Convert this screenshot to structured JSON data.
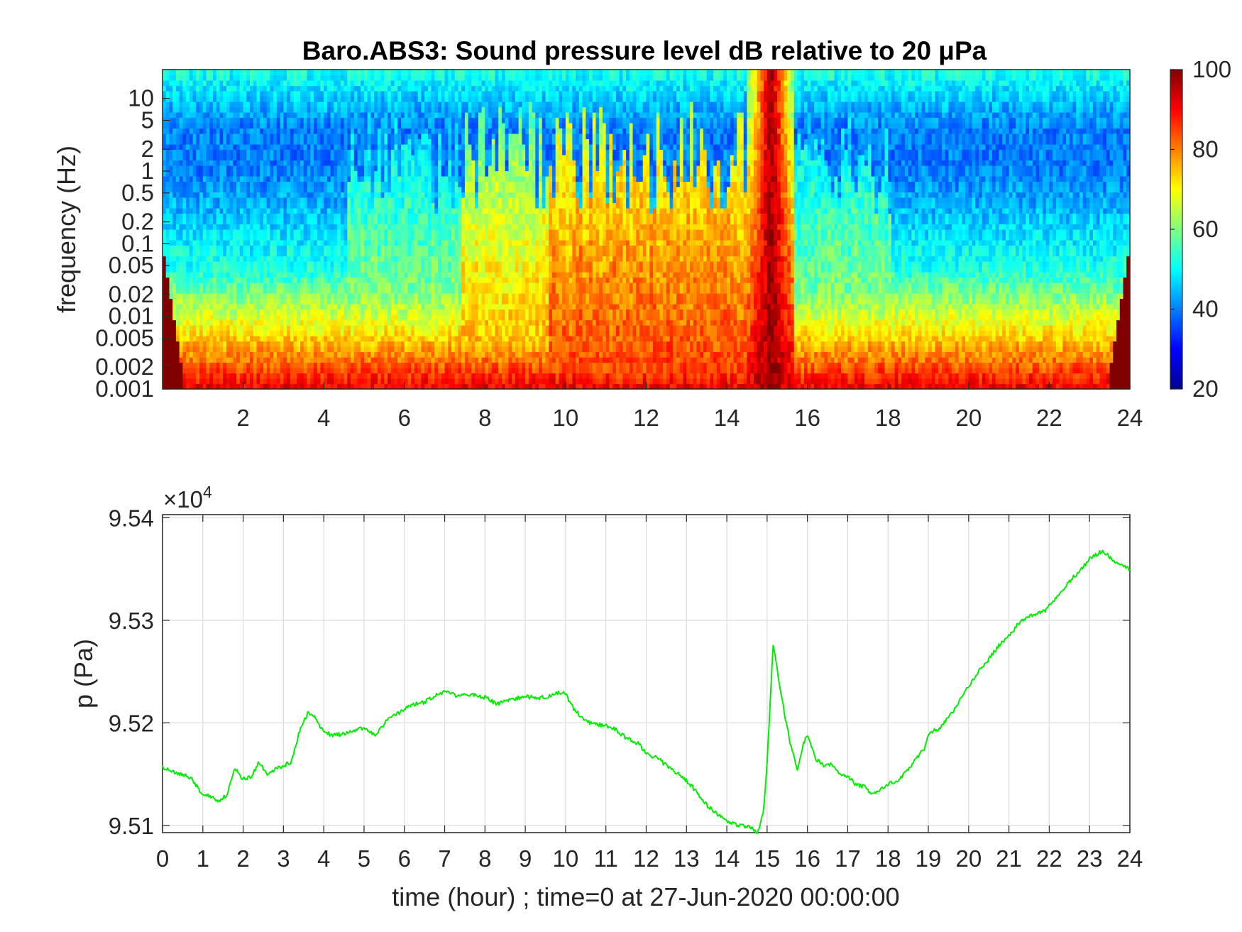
{
  "chart_data": [
    {
      "type": "heatmap",
      "title": "Baro.ABS3: Sound pressure level dB relative to 20 μPa",
      "xlabel": "",
      "ylabel": "frequency (Hz)",
      "xlim": [
        0,
        24
      ],
      "x_ticks": [
        2,
        4,
        6,
        8,
        10,
        12,
        14,
        16,
        18,
        20,
        22,
        24
      ],
      "x_tick_labels": [
        "2",
        "4",
        "6",
        "8",
        "10",
        "12",
        "14",
        "16",
        "18",
        "20",
        "22",
        "24"
      ],
      "y_scale": "log",
      "ylim": [
        0.001,
        25
      ],
      "y_ticks": [
        0.001,
        0.002,
        0.005,
        0.01,
        0.02,
        0.05,
        0.1,
        0.2,
        0.5,
        1,
        2,
        5,
        10
      ],
      "y_tick_labels": [
        "0.001",
        "0.002",
        "0.005",
        "0.01",
        "0.02",
        "0.05",
        "0.1",
        "0.2",
        "0.5",
        "1",
        "2",
        "5",
        "10"
      ],
      "colorbar": {
        "colormap": "jet",
        "range": [
          20,
          100
        ],
        "ticks": [
          20,
          40,
          60,
          80,
          100
        ],
        "tick_labels": [
          "20",
          "40",
          "60",
          "80",
          "100"
        ]
      },
      "high_level_bursts_hours": [
        {
          "start": 4.6,
          "end": 7.4,
          "level_db": 66
        },
        {
          "start": 7.4,
          "end": 9.6,
          "level_db": 78
        },
        {
          "start": 9.6,
          "end": 14.6,
          "level_db": 86
        },
        {
          "start": 15.0,
          "end": 15.2,
          "level_db": 100
        },
        {
          "start": 15.4,
          "end": 18.1,
          "level_db": 66
        }
      ]
    },
    {
      "type": "line",
      "title": "",
      "xlabel": "time (hour) ; time=0 at 27-Jun-2020 00:00:00",
      "ylabel": "p (Pa)",
      "y_exponent_label": "×10",
      "y_exponent_power": "4",
      "xlim": [
        0,
        24
      ],
      "ylim": [
        95093,
        95403
      ],
      "x_ticks": [
        0,
        1,
        2,
        3,
        4,
        5,
        6,
        7,
        8,
        9,
        10,
        11,
        12,
        13,
        14,
        15,
        16,
        17,
        18,
        19,
        20,
        21,
        22,
        23,
        24
      ],
      "x_tick_labels": [
        "0",
        "1",
        "2",
        "3",
        "4",
        "5",
        "6",
        "7",
        "8",
        "9",
        "10",
        "11",
        "12",
        "13",
        "14",
        "15",
        "16",
        "17",
        "18",
        "19",
        "20",
        "21",
        "22",
        "23",
        "24"
      ],
      "y_ticks": [
        95100,
        95200,
        95300,
        95400
      ],
      "y_tick_labels": [
        "9.51",
        "9.52",
        "9.53",
        "9.54"
      ],
      "grid": true,
      "series_color": "#00ee00",
      "x": [
        0,
        0.3,
        0.5,
        0.7,
        1.0,
        1.2,
        1.4,
        1.6,
        1.8,
        2.0,
        2.2,
        2.4,
        2.6,
        2.8,
        3.0,
        3.2,
        3.4,
        3.6,
        3.8,
        4.0,
        4.3,
        4.6,
        5.0,
        5.3,
        5.6,
        5.9,
        6.2,
        6.5,
        6.8,
        7.0,
        7.3,
        7.6,
        8.0,
        8.3,
        8.6,
        9.0,
        9.3,
        9.6,
        9.9,
        10.0,
        10.2,
        10.4,
        10.6,
        10.9,
        11.2,
        11.5,
        11.8,
        12.0,
        12.3,
        12.6,
        12.9,
        13.2,
        13.5,
        13.8,
        14.0,
        14.3,
        14.6,
        14.75,
        14.9,
        15.0,
        15.1,
        15.15,
        15.2,
        15.3,
        15.45,
        15.6,
        15.75,
        15.9,
        16.0,
        16.2,
        16.4,
        16.6,
        16.8,
        17.0,
        17.2,
        17.4,
        17.6,
        17.8,
        18.0,
        18.3,
        18.6,
        18.9,
        19.0,
        19.3,
        19.6,
        19.9,
        20.2,
        20.5,
        20.8,
        21.0,
        21.3,
        21.6,
        21.9,
        22.2,
        22.5,
        22.8,
        23.0,
        23.3,
        23.5,
        23.7,
        24.0
      ],
      "values": [
        95157,
        95152,
        95150,
        95146,
        95130,
        95128,
        95123,
        95130,
        95155,
        95145,
        95148,
        95162,
        95150,
        95155,
        95158,
        95162,
        95192,
        95210,
        95205,
        95190,
        95188,
        95190,
        95195,
        95188,
        95205,
        95210,
        95218,
        95220,
        95228,
        95230,
        95226,
        95228,
        95225,
        95218,
        95222,
        95226,
        95224,
        95226,
        95230,
        95228,
        95214,
        95205,
        95200,
        95198,
        95195,
        95185,
        95180,
        95170,
        95165,
        95155,
        95148,
        95135,
        95120,
        95110,
        95105,
        95100,
        95098,
        95093,
        95110,
        95160,
        95240,
        95275,
        95265,
        95240,
        95205,
        95175,
        95155,
        95180,
        95188,
        95165,
        95158,
        95160,
        95150,
        95148,
        95140,
        95138,
        95130,
        95135,
        95140,
        95145,
        95160,
        95175,
        95190,
        95195,
        95210,
        95230,
        95248,
        95262,
        95278,
        95285,
        95300,
        95305,
        95310,
        95323,
        95338,
        95350,
        95360,
        95367,
        95362,
        95355,
        95350
      ]
    }
  ]
}
